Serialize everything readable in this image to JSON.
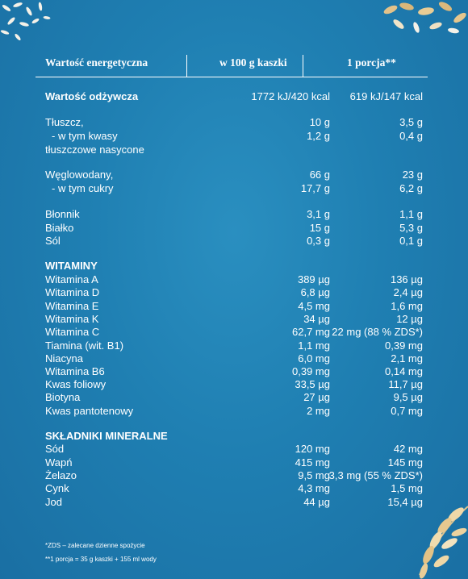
{
  "header": {
    "col1": "Wartość energetyczna",
    "col2": "w 100 g kaszki",
    "col3": "1 porcja**"
  },
  "rows": [
    {
      "name": "Wartość odżywcza",
      "v100": "1772 kJ/420 kcal",
      "vpor": "619 kJ/147 kcal",
      "bold": true
    },
    {
      "name": "Tłuszcz,",
      "v100": "10 g",
      "vpor": "3,5 g"
    },
    {
      "name": "- w tym kwasy",
      "v100": "1,2 g",
      "vpor": "0,4 g",
      "indent": true
    },
    {
      "name": "tłuszczowe nasycone",
      "v100": "",
      "vpor": ""
    },
    {
      "name": "Węglowodany,",
      "v100": "66 g",
      "vpor": "23 g"
    },
    {
      "name": "- w tym cukry",
      "v100": "17,7 g",
      "vpor": "6,2 g",
      "indent": true
    },
    {
      "name": "Błonnik",
      "v100": "3,1 g",
      "vpor": "1,1 g"
    },
    {
      "name": "Białko",
      "v100": "15 g",
      "vpor": "5,3 g"
    },
    {
      "name": "Sól",
      "v100": "0,3 g",
      "vpor": "0,1 g"
    },
    {
      "name": "WITAMINY",
      "v100": "",
      "vpor": "",
      "section": true
    },
    {
      "name": "Witamina A",
      "v100": "389 µg",
      "vpor": "136 µg"
    },
    {
      "name": "Witamina D",
      "v100": "6,8 µg",
      "vpor": "2,4 µg"
    },
    {
      "name": "Witamina E",
      "v100": "4,5 mg",
      "vpor": "1,6 mg"
    },
    {
      "name": "Witamina K",
      "v100": "34 µg",
      "vpor": "12 µg"
    },
    {
      "name": "Witamina C",
      "v100": "62,7 mg",
      "vpor": "22 mg (88 % ZDS*)"
    },
    {
      "name": "Tiamina (wit. B1)",
      "v100": "1,1 mg",
      "vpor": "0,39 mg"
    },
    {
      "name": "Niacyna",
      "v100": "6,0 mg",
      "vpor": "2,1 mg"
    },
    {
      "name": "Witamina B6",
      "v100": "0,39 mg",
      "vpor": "0,14 mg"
    },
    {
      "name": "Kwas foliowy",
      "v100": "33,5 µg",
      "vpor": "11,7 µg"
    },
    {
      "name": "Biotyna",
      "v100": "27 µg",
      "vpor": "9,5 µg"
    },
    {
      "name": "Kwas pantotenowy",
      "v100": "2 mg",
      "vpor": "0,7 mg"
    },
    {
      "name": "SKŁADNIKI MINERALNE",
      "v100": "",
      "vpor": "",
      "section": true
    },
    {
      "name": "Sód",
      "v100": "120 mg",
      "vpor": "42 mg"
    },
    {
      "name": "Wapń",
      "v100": "415 mg",
      "vpor": "145 mg"
    },
    {
      "name": "Żelazo",
      "v100": "9,5 mg",
      "vpor": "3,3 mg (55 % ZDS*)"
    },
    {
      "name": "Cynk",
      "v100": "4,3 mg",
      "vpor": "1,5 mg"
    },
    {
      "name": "Jod",
      "v100": "44 µg",
      "vpor": "15,4 µg"
    }
  ],
  "footnotes": [
    "*ZDS – zalecane dzienne spożycie",
    "**1 porcja = 35 g kaszki + 155 ml wody"
  ]
}
